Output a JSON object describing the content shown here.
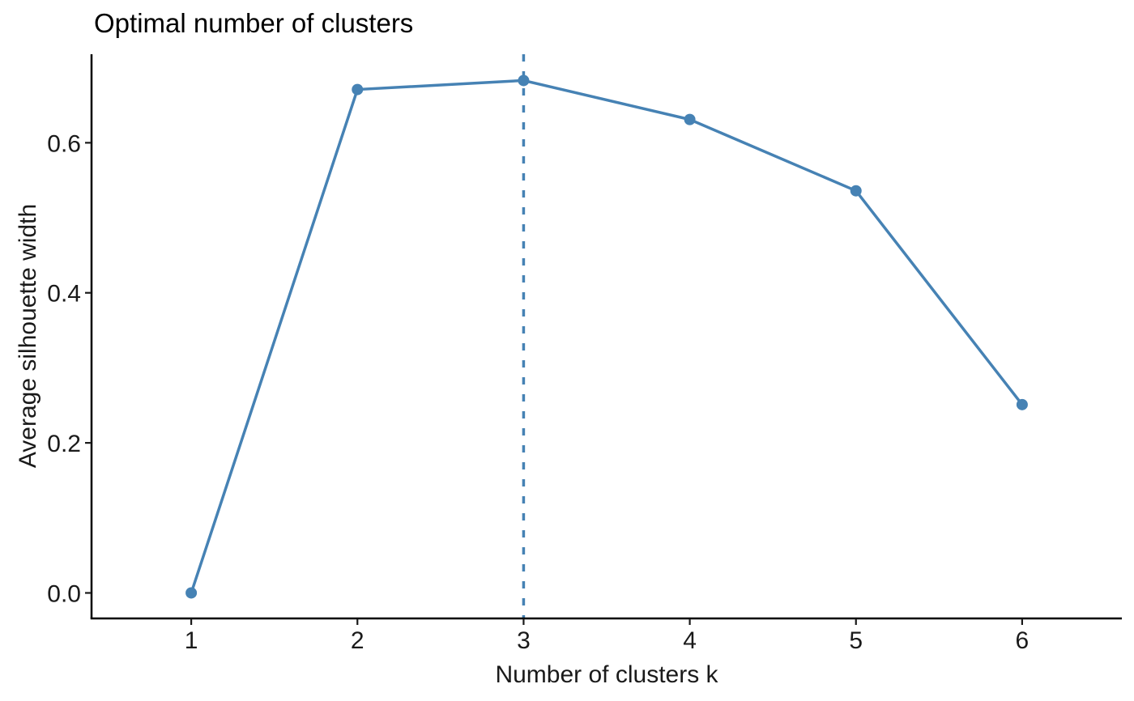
{
  "page": {
    "background": "#ffffff"
  },
  "chart_data": {
    "type": "line",
    "title": "Optimal number of clusters",
    "xlabel": "Number of clusters k",
    "ylabel": "Average silhouette width",
    "series": [
      {
        "name": "Average silhouette width",
        "x": [
          1,
          2,
          3,
          4,
          5,
          6
        ],
        "values": [
          0.0,
          0.671,
          0.683,
          0.631,
          0.536,
          0.251
        ]
      }
    ],
    "x_tick_labels": [
      "1",
      "2",
      "3",
      "4",
      "5",
      "6"
    ],
    "y_tick_values": [
      0.0,
      0.2,
      0.4,
      0.6
    ],
    "y_tick_labels": [
      "0.0",
      "0.2",
      "0.4",
      "0.6"
    ],
    "xlim": [
      0.4,
      6.6
    ],
    "ylim": [
      -0.034,
      0.718
    ],
    "grid": false,
    "legend": "none",
    "annotations": [
      {
        "type": "vline",
        "x": 3,
        "style": "dashed"
      }
    ],
    "colors": {
      "line": "#4682B4",
      "point": "#4682B4",
      "vline": "#4682B4",
      "axis": "#000000",
      "tick": "#1a1a1a",
      "tick_text": "#1a1a1a",
      "title_text": "#000000"
    },
    "marker": "circle"
  }
}
